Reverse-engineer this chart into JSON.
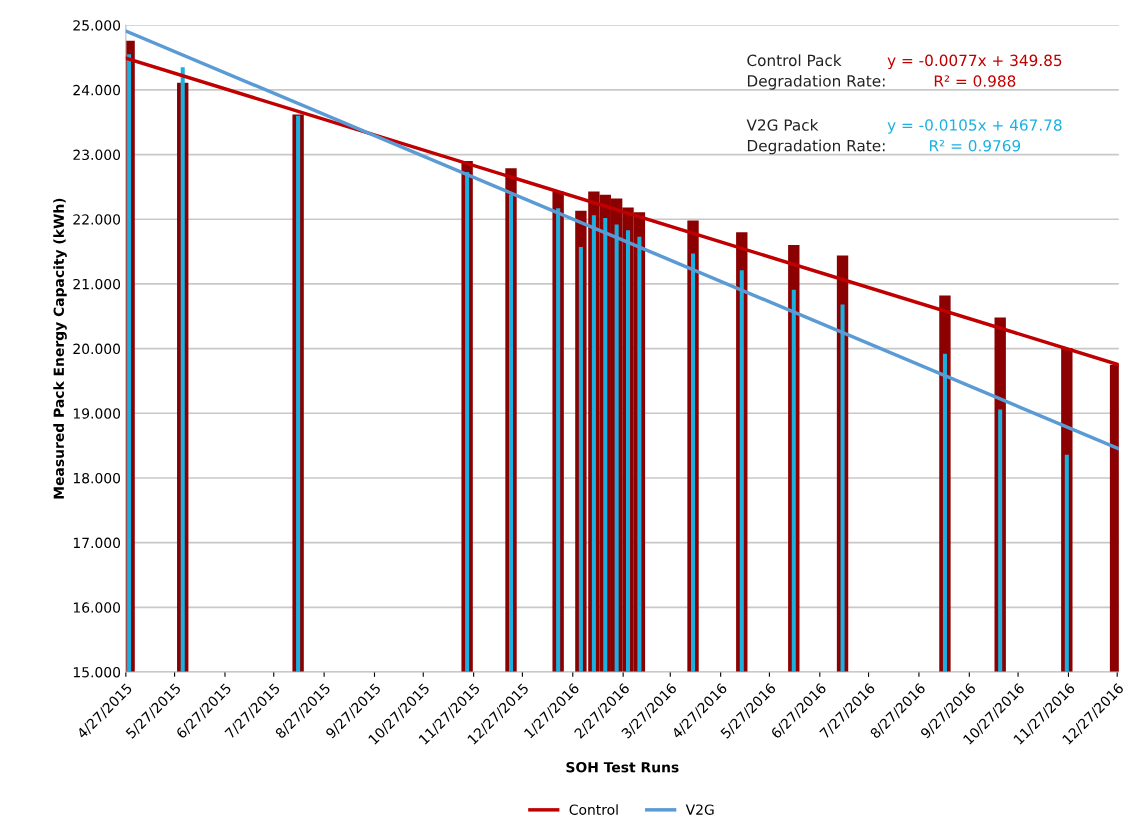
{
  "chart_data": {
    "type": "bar",
    "xlabel": "SOH Test Runs",
    "ylabel": "Measured Pack Energy Capacity (kWh)",
    "x": [
      "2015-04-29",
      "2015-06-01",
      "2015-08-11",
      "2015-11-23",
      "2015-12-20",
      "2016-01-18",
      "2016-02-01",
      "2016-02-09",
      "2016-02-16",
      "2016-02-23",
      "2016-03-01",
      "2016-03-08",
      "2016-04-10",
      "2016-05-10",
      "2016-06-11",
      "2016-07-11",
      "2016-09-12",
      "2016-10-16",
      "2016-11-26",
      "2016-12-26"
    ],
    "series": [
      {
        "color": "#8b0000",
        "values": [
          24.76,
          24.11,
          23.62,
          22.9,
          22.79,
          22.43,
          22.13,
          22.43,
          22.38,
          22.32,
          22.18,
          22.11,
          21.98,
          21.8,
          21.6,
          21.44,
          20.82,
          20.48,
          20.01,
          19.75
        ]
      },
      {
        "color": "#1ab0e0",
        "values": [
          24.55,
          24.35,
          23.6,
          22.73,
          22.38,
          22.17,
          21.57,
          22.06,
          22.02,
          21.92,
          21.83,
          21.73,
          21.47,
          21.21,
          20.91,
          20.68,
          19.92,
          19.06,
          18.36,
          null
        ]
      },
      {
        "type": "line",
        "name": "Control",
        "color": "#c00000",
        "x": [
          "2015-04-27",
          "2016-12-28"
        ],
        "values": [
          24.49,
          19.75
        ]
      },
      {
        "type": "line",
        "name": "V2G",
        "color": "#5b9bd5",
        "x": [
          "2015-04-27",
          "2016-12-28"
        ],
        "values": [
          24.91,
          18.45
        ]
      }
    ],
    "xlim": [
      "2015-04-27",
      "2016-12-28"
    ],
    "xticks": [
      {
        "value": "2015-04-27",
        "label": "4/27/2015"
      },
      {
        "value": "2015-05-27",
        "label": "5/27/2015"
      },
      {
        "value": "2015-06-27",
        "label": "6/27/2015"
      },
      {
        "value": "2015-07-27",
        "label": "7/27/2015"
      },
      {
        "value": "2015-08-27",
        "label": "8/27/2015"
      },
      {
        "value": "2015-09-27",
        "label": "9/27/2015"
      },
      {
        "value": "2015-10-27",
        "label": "10/27/2015"
      },
      {
        "value": "2015-11-27",
        "label": "11/27/2015"
      },
      {
        "value": "2015-12-27",
        "label": "12/27/2015"
      },
      {
        "value": "2016-01-27",
        "label": "1/27/2016"
      },
      {
        "value": "2016-02-27",
        "label": "2/27/2016"
      },
      {
        "value": "2016-03-27",
        "label": "3/27/2016"
      },
      {
        "value": "2016-04-27",
        "label": "4/27/2016"
      },
      {
        "value": "2016-05-27",
        "label": "5/27/2016"
      },
      {
        "value": "2016-06-27",
        "label": "6/27/2016"
      },
      {
        "value": "2016-07-27",
        "label": "7/27/2016"
      },
      {
        "value": "2016-08-27",
        "label": "8/27/2016"
      },
      {
        "value": "2016-09-27",
        "label": "9/27/2016"
      },
      {
        "value": "2016-10-27",
        "label": "10/27/2016"
      },
      {
        "value": "2016-11-27",
        "label": "11/27/2016"
      },
      {
        "value": "2016-12-27",
        "label": "12/27/2016"
      }
    ],
    "ylim": [
      15,
      25
    ],
    "yticks": [
      {
        "value": 15,
        "label": "15.000"
      },
      {
        "value": 16,
        "label": "16.000"
      },
      {
        "value": 17,
        "label": "17.000"
      },
      {
        "value": 18,
        "label": "18.000"
      },
      {
        "value": 19,
        "label": "19.000"
      },
      {
        "value": 20,
        "label": "20.000"
      },
      {
        "value": 21,
        "label": "21.000"
      },
      {
        "value": 22,
        "label": "22.000"
      },
      {
        "value": 23,
        "label": "23.000"
      },
      {
        "value": 24,
        "label": "24.000"
      },
      {
        "value": 25,
        "label": "25.000"
      }
    ],
    "grid": "y",
    "legend": "bottom",
    "annotations": [
      "Control Pack\nDegradation Rate:",
      "y = -0.0077x + 349.85",
      "R² = 0.988",
      "V2G Pack\nDegradation Rate:",
      "y = -0.0105x + 467.78",
      "R² = 0.9769"
    ]
  }
}
